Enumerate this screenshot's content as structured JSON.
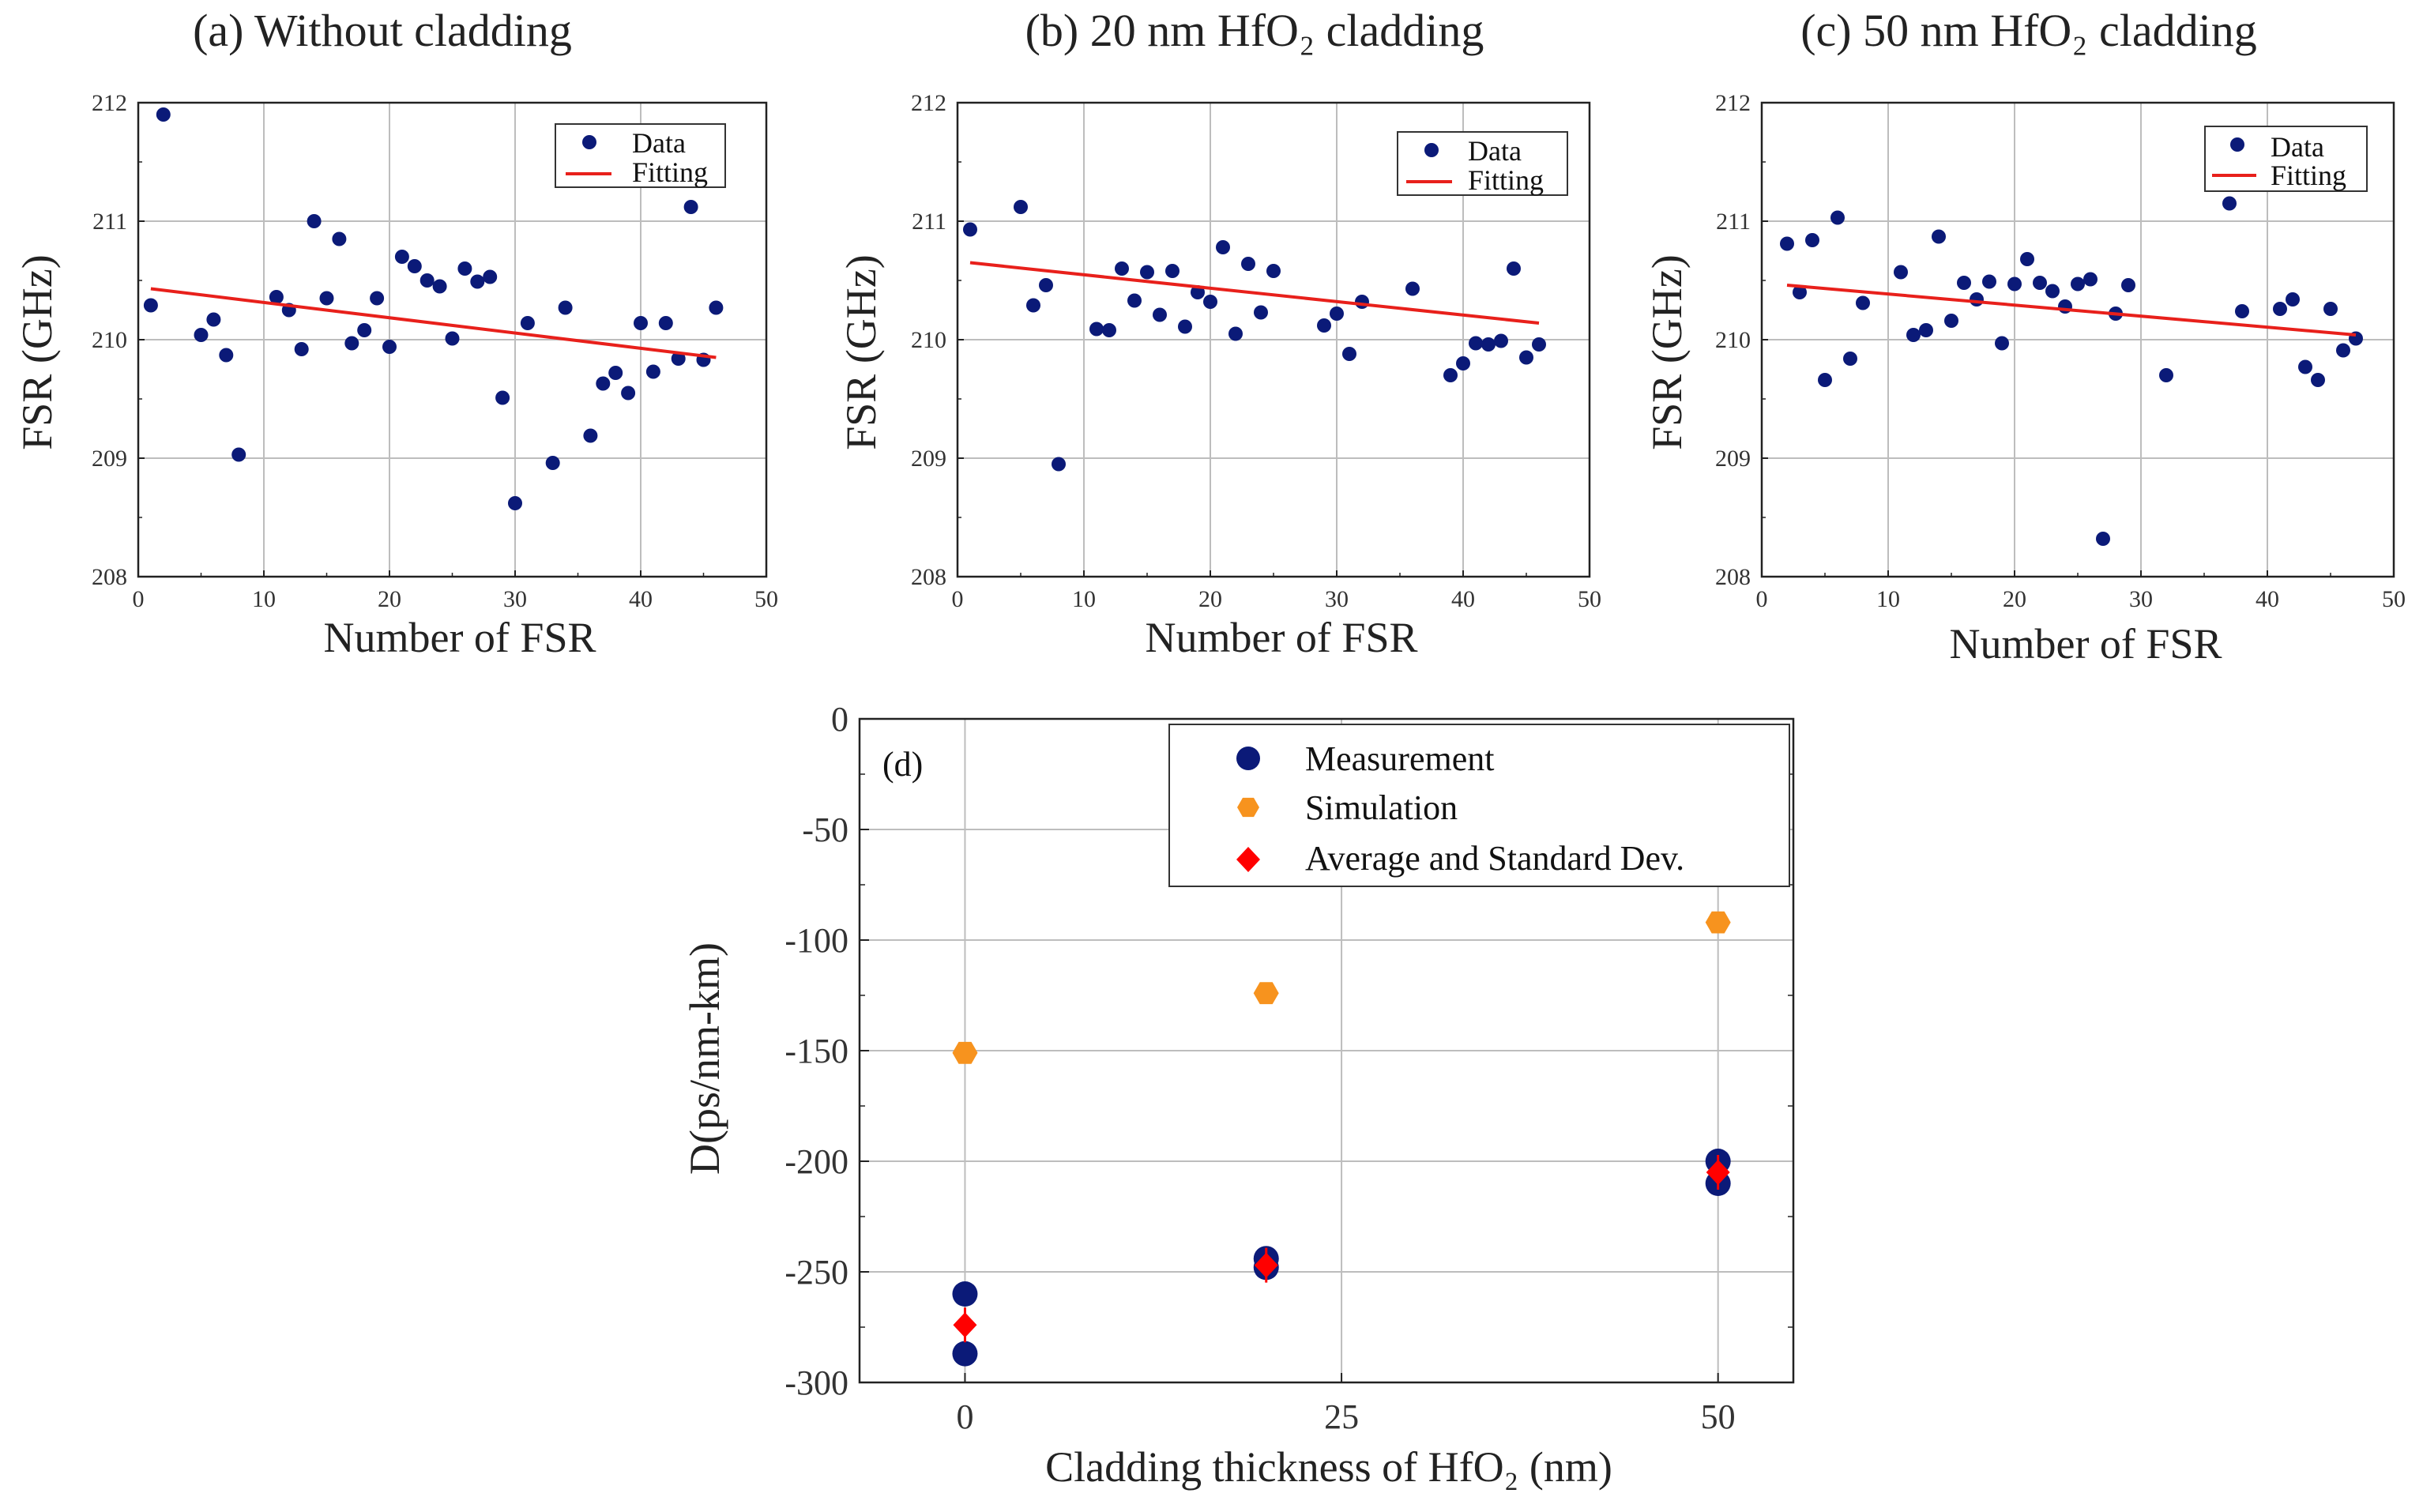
{
  "chart_data": [
    {
      "type": "scatter",
      "title": "(a) Without cladding",
      "xlabel": "Number of FSR",
      "ylabel": "FSR (GHz)",
      "xlim": [
        0,
        50
      ],
      "ylim": [
        208,
        212
      ],
      "xticks": [
        "0",
        "10",
        "20",
        "30",
        "40",
        "50"
      ],
      "yticks": [
        "208",
        "209",
        "210",
        "211",
        "212"
      ],
      "legend": [
        "Data",
        "Fitting"
      ],
      "series": [
        {
          "name": "Data",
          "points": [
            [
              1,
              210.29
            ],
            [
              2,
              211.9
            ],
            [
              5,
              210.04
            ],
            [
              6,
              210.17
            ],
            [
              7,
              209.87
            ],
            [
              8,
              209.03
            ],
            [
              11,
              210.36
            ],
            [
              12,
              210.25
            ],
            [
              13,
              209.92
            ],
            [
              14,
              211.0
            ],
            [
              15,
              210.35
            ],
            [
              16,
              210.85
            ],
            [
              17,
              209.97
            ],
            [
              18,
              210.08
            ],
            [
              19,
              210.35
            ],
            [
              20,
              209.94
            ],
            [
              21,
              210.7
            ],
            [
              22,
              210.62
            ],
            [
              23,
              210.5
            ],
            [
              24,
              210.45
            ],
            [
              25,
              210.01
            ],
            [
              26,
              210.6
            ],
            [
              27,
              210.49
            ],
            [
              28,
              210.53
            ],
            [
              29,
              209.51
            ],
            [
              30,
              208.62
            ],
            [
              31,
              210.14
            ],
            [
              33,
              208.96
            ],
            [
              34,
              210.27
            ],
            [
              36,
              209.19
            ],
            [
              37,
              209.63
            ],
            [
              38,
              209.72
            ],
            [
              39,
              209.55
            ],
            [
              40,
              210.14
            ],
            [
              41,
              209.73
            ],
            [
              42,
              210.14
            ],
            [
              43,
              209.84
            ],
            [
              44,
              211.12
            ],
            [
              45,
              209.83
            ],
            [
              46,
              210.27
            ]
          ]
        },
        {
          "name": "Fitting",
          "line": [
            [
              1,
              210.43
            ],
            [
              46,
              209.85
            ]
          ]
        }
      ]
    },
    {
      "type": "scatter",
      "title": "(b) 20 nm HfO₂ cladding",
      "xlabel": "Number of FSR",
      "ylabel": "FSR (GHz)",
      "xlim": [
        0,
        50
      ],
      "ylim": [
        208,
        212
      ],
      "xticks": [
        "0",
        "10",
        "20",
        "30",
        "40",
        "50"
      ],
      "yticks": [
        "208",
        "209",
        "210",
        "211",
        "212"
      ],
      "legend": [
        "Data",
        "Fitting"
      ],
      "series": [
        {
          "name": "Data",
          "points": [
            [
              1,
              210.93
            ],
            [
              5,
              211.12
            ],
            [
              6,
              210.29
            ],
            [
              7,
              210.46
            ],
            [
              8,
              208.95
            ],
            [
              11,
              210.09
            ],
            [
              12,
              210.08
            ],
            [
              13,
              210.6
            ],
            [
              14,
              210.33
            ],
            [
              15,
              210.57
            ],
            [
              16,
              210.21
            ],
            [
              17,
              210.58
            ],
            [
              18,
              210.11
            ],
            [
              19,
              210.4
            ],
            [
              20,
              210.32
            ],
            [
              21,
              210.78
            ],
            [
              22,
              210.05
            ],
            [
              23,
              210.64
            ],
            [
              24,
              210.23
            ],
            [
              25,
              210.58
            ],
            [
              29,
              210.12
            ],
            [
              30,
              210.22
            ],
            [
              31,
              209.88
            ],
            [
              32,
              210.32
            ],
            [
              36,
              210.43
            ],
            [
              39,
              209.7
            ],
            [
              40,
              209.8
            ],
            [
              41,
              209.97
            ],
            [
              42,
              209.96
            ],
            [
              43,
              209.99
            ],
            [
              44,
              210.6
            ],
            [
              45,
              209.85
            ],
            [
              46,
              209.96
            ]
          ]
        },
        {
          "name": "Fitting",
          "line": [
            [
              1,
              210.65
            ],
            [
              46,
              210.14
            ]
          ]
        }
      ]
    },
    {
      "type": "scatter",
      "title": "(c) 50 nm HfO₂ cladding",
      "xlabel": "Number of FSR",
      "ylabel": "FSR (GHz)",
      "xlim": [
        0,
        50
      ],
      "ylim": [
        208,
        212
      ],
      "xticks": [
        "0",
        "10",
        "20",
        "30",
        "40",
        "50"
      ],
      "yticks": [
        "208",
        "209",
        "210",
        "211",
        "212"
      ],
      "legend": [
        "Data",
        "Fitting"
      ],
      "series": [
        {
          "name": "Data",
          "points": [
            [
              2,
              210.81
            ],
            [
              3,
              210.4
            ],
            [
              4,
              210.84
            ],
            [
              5,
              209.66
            ],
            [
              6,
              211.03
            ],
            [
              7,
              209.84
            ],
            [
              8,
              210.31
            ],
            [
              11,
              210.57
            ],
            [
              12,
              210.04
            ],
            [
              13,
              210.08
            ],
            [
              14,
              210.87
            ],
            [
              15,
              210.16
            ],
            [
              16,
              210.48
            ],
            [
              17,
              210.34
            ],
            [
              18,
              210.49
            ],
            [
              19,
              209.97
            ],
            [
              20,
              210.47
            ],
            [
              21,
              210.68
            ],
            [
              22,
              210.48
            ],
            [
              23,
              210.41
            ],
            [
              24,
              210.28
            ],
            [
              25,
              210.47
            ],
            [
              26,
              210.51
            ],
            [
              27,
              208.32
            ],
            [
              28,
              210.22
            ],
            [
              29,
              210.46
            ],
            [
              32,
              209.7
            ],
            [
              37,
              211.15
            ],
            [
              38,
              210.24
            ],
            [
              41,
              210.26
            ],
            [
              42,
              210.34
            ],
            [
              43,
              209.77
            ],
            [
              44,
              209.66
            ],
            [
              45,
              210.26
            ],
            [
              46,
              209.91
            ],
            [
              47,
              210.01
            ]
          ]
        },
        {
          "name": "Fitting",
          "line": [
            [
              2,
              210.46
            ],
            [
              47,
              210.04
            ]
          ]
        }
      ]
    },
    {
      "type": "scatter",
      "tag": "(d)",
      "xlabel": "Cladding thickness of HfO₂ (nm)",
      "ylabel": "D(ps/nm-km)",
      "xlim": [
        -7,
        55
      ],
      "ylim": [
        -300,
        0
      ],
      "xticks": [
        "0",
        "25",
        "50"
      ],
      "yticks": [
        "0",
        "-50",
        "-100",
        "-150",
        "-200",
        "-250",
        "-300"
      ],
      "legend": [
        "Measurement",
        "Simulation",
        "Average and Standard Dev."
      ],
      "series": [
        {
          "name": "Measurement",
          "points": [
            [
              0,
              -260
            ],
            [
              0,
              -287
            ],
            [
              20,
              -244
            ],
            [
              20,
              -248
            ],
            [
              50,
              -200
            ],
            [
              50,
              -210
            ]
          ]
        },
        {
          "name": "Simulation",
          "points": [
            [
              0,
              -151
            ],
            [
              20,
              -124
            ],
            [
              50,
              -92
            ]
          ]
        },
        {
          "name": "Average and Standard Dev.",
          "points": [
            [
              0,
              -274
            ],
            [
              20,
              -247
            ],
            [
              50,
              -205
            ]
          ]
        }
      ]
    }
  ],
  "colors": {
    "data": "#0b1a78",
    "fit": "#e8201b",
    "sim": "#f7931e",
    "avg": "#ff0000",
    "grid": "#bdbdbd"
  }
}
